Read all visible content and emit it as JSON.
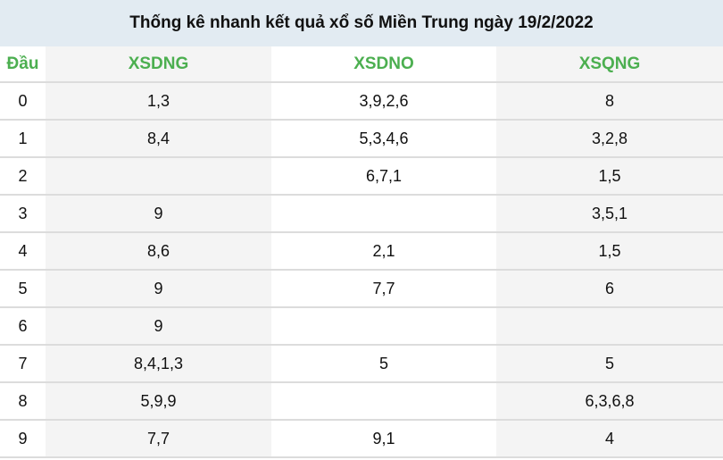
{
  "title": "Thống kê nhanh kết quả xổ số Miền Trung ngày 19/2/2022",
  "headers": [
    "Đầu",
    "XSDNG",
    "XSDNO",
    "XSQNG"
  ],
  "accent_color": "#4caf50",
  "rows": [
    [
      "0",
      "1,3",
      "3,9,2,6",
      "8"
    ],
    [
      "1",
      "8,4",
      "5,3,4,6",
      "3,2,8"
    ],
    [
      "2",
      "",
      "6,7,1",
      "1,5"
    ],
    [
      "3",
      "9",
      "",
      "3,5,1"
    ],
    [
      "4",
      "8,6",
      "2,1",
      "1,5"
    ],
    [
      "5",
      "9",
      "7,7",
      "6"
    ],
    [
      "6",
      "9",
      "",
      ""
    ],
    [
      "7",
      "8,4,1,3",
      "5",
      "5"
    ],
    [
      "8",
      "5,9,9",
      "",
      "6,3,6,8"
    ],
    [
      "9",
      "7,7",
      "9,1",
      "4"
    ]
  ]
}
